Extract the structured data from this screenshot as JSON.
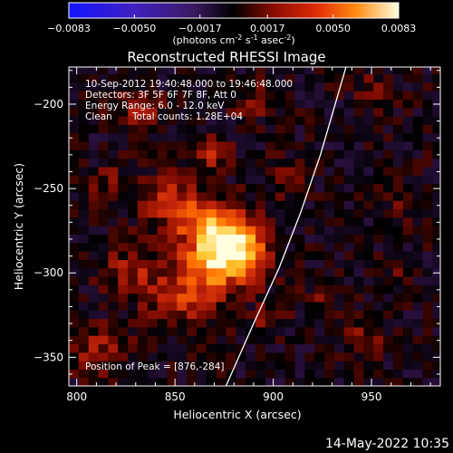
{
  "colorbar": {
    "ticks": [
      "-0.0083",
      "-0.0050",
      "-0.0017",
      "0.0017",
      "0.0050",
      "0.0083"
    ],
    "tick_values": [
      -0.0083,
      -0.005,
      -0.0017,
      0.0017,
      0.005,
      0.0083
    ],
    "range": [
      -0.0083,
      0.0083
    ],
    "unit_pre": "(photons cm",
    "unit_exp1": "-2",
    "unit_mid": " s",
    "unit_exp2": "-1",
    "unit_mid2": " asec",
    "unit_exp3": "-2",
    "unit_post": ")"
  },
  "annotations": {
    "time_range": "10-Sep-2012 19:40:48.000 to 19:46:48.000",
    "detectors": "Detectors: 3F 5F 6F 7F 8F, Att 0",
    "energy": "Energy Range: 6.0 - 12.0 keV",
    "method": "Clean",
    "counts": "Total counts: 1.28E+04",
    "peak": "Position of Peak = [876,-284]"
  },
  "footer": {
    "date": "14-May-2022 10:35"
  },
  "chart_data": {
    "type": "heatmap",
    "title": "Reconstructed RHESSI Image",
    "xlabel": "Heliocentric X (arcsec)",
    "ylabel": "Heliocentric Y (arcsec)",
    "xlim": [
      796,
      985
    ],
    "ylim": [
      -367,
      -178
    ],
    "xticks": [
      800,
      850,
      900,
      950
    ],
    "yticks": [
      -200,
      -250,
      -300,
      -350
    ],
    "xtick_labels": [
      "800",
      "850",
      "900",
      "950"
    ],
    "ytick_labels": [
      "-200",
      "-250",
      "-300",
      "-350"
    ],
    "peak": {
      "x": 876,
      "y": -284
    },
    "limb_curve": [
      [
        876,
        -367
      ],
      [
        890,
        -330
      ],
      [
        903,
        -297
      ],
      [
        914,
        -264
      ],
      [
        924,
        -230
      ],
      [
        934,
        -190
      ],
      [
        937,
        -178
      ]
    ],
    "colormap": [
      "#1a1aff",
      "#3a1fc0",
      "#4a2f8a",
      "#2a1040",
      "#000000",
      "#7a0a00",
      "#c8260a",
      "#ff6a00",
      "#ffc830",
      "#ffffe0"
    ]
  }
}
